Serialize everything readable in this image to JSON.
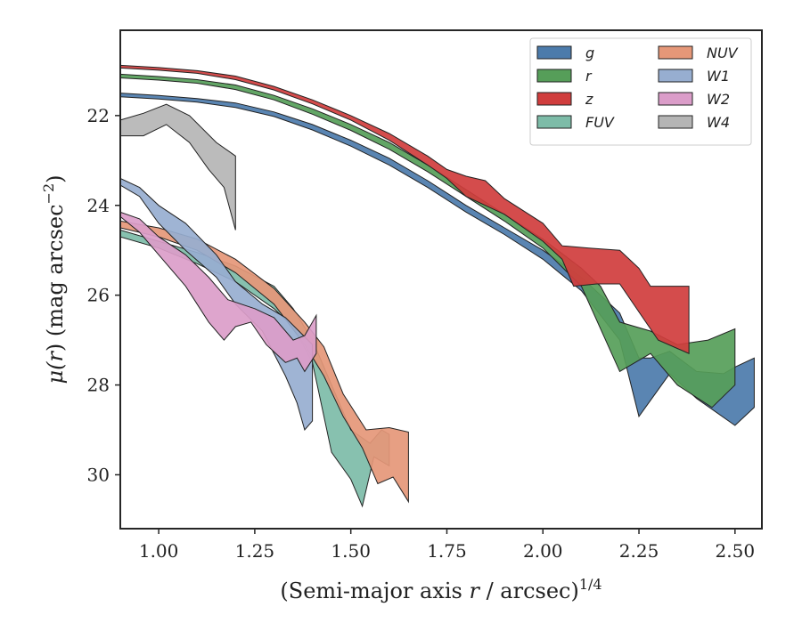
{
  "chart_data": {
    "type": "area",
    "xlabel": "(Semi-major axis r / arcsec)",
    "xlabel_pre": "(Semi-major axis ",
    "xlabel_var": "r",
    "xlabel_post": " / arcsec)",
    "xlabel_exp": "1/4",
    "ylabel_pre": "μ(",
    "ylabel_var": "r",
    "ylabel_mid": ") (mag arcsec",
    "ylabel_exp": "−2",
    "ylabel_post": ")",
    "xlim": [
      0.9,
      2.57
    ],
    "ylim": [
      31.2,
      20.1
    ],
    "y_inverted": true,
    "xticks": [
      1.0,
      1.25,
      1.5,
      1.75,
      2.0,
      2.25,
      2.5
    ],
    "xtick_labels": [
      "1.00",
      "1.25",
      "1.50",
      "1.75",
      "2.00",
      "2.25",
      "2.50"
    ],
    "yticks": [
      22,
      24,
      26,
      28,
      30
    ],
    "ytick_labels": [
      "22",
      "24",
      "26",
      "28",
      "30"
    ],
    "grid": false,
    "legend_position": "top-right",
    "legend_columns": 2,
    "series": [
      {
        "name": "g",
        "color": "#4c7bab",
        "upper": [
          [
            0.9,
            21.5
          ],
          [
            1.0,
            21.55
          ],
          [
            1.1,
            21.62
          ],
          [
            1.2,
            21.72
          ],
          [
            1.3,
            21.92
          ],
          [
            1.4,
            22.2
          ],
          [
            1.5,
            22.55
          ],
          [
            1.6,
            22.95
          ],
          [
            1.7,
            23.45
          ],
          [
            1.8,
            24.0
          ],
          [
            1.9,
            24.5
          ],
          [
            2.0,
            25.0
          ],
          [
            2.1,
            25.6
          ],
          [
            2.2,
            26.4
          ],
          [
            2.25,
            27.4
          ],
          [
            2.28,
            27.4
          ],
          [
            2.33,
            27.25
          ],
          [
            2.4,
            27.7
          ],
          [
            2.47,
            27.75
          ],
          [
            2.5,
            27.6
          ],
          [
            2.55,
            27.4
          ]
        ],
        "lower": [
          [
            0.9,
            21.58
          ],
          [
            1.0,
            21.63
          ],
          [
            1.1,
            21.7
          ],
          [
            1.2,
            21.82
          ],
          [
            1.3,
            22.02
          ],
          [
            1.4,
            22.32
          ],
          [
            1.5,
            22.68
          ],
          [
            1.6,
            23.1
          ],
          [
            1.7,
            23.6
          ],
          [
            1.8,
            24.15
          ],
          [
            1.9,
            24.65
          ],
          [
            2.0,
            25.2
          ],
          [
            2.1,
            25.9
          ],
          [
            2.2,
            27.0
          ],
          [
            2.25,
            28.7
          ],
          [
            2.33,
            27.75
          ],
          [
            2.4,
            28.3
          ],
          [
            2.5,
            28.9
          ],
          [
            2.55,
            28.5
          ]
        ]
      },
      {
        "name": "r",
        "color": "#569e59",
        "upper": [
          [
            0.9,
            21.08
          ],
          [
            1.0,
            21.13
          ],
          [
            1.1,
            21.2
          ],
          [
            1.2,
            21.32
          ],
          [
            1.3,
            21.55
          ],
          [
            1.4,
            21.85
          ],
          [
            1.5,
            22.2
          ],
          [
            1.6,
            22.6
          ],
          [
            1.7,
            23.1
          ],
          [
            1.8,
            23.65
          ],
          [
            1.9,
            24.2
          ],
          [
            2.0,
            24.75
          ],
          [
            2.1,
            25.4
          ],
          [
            2.15,
            25.8
          ],
          [
            2.2,
            26.6
          ],
          [
            2.28,
            26.8
          ],
          [
            2.35,
            27.1
          ],
          [
            2.43,
            27.0
          ],
          [
            2.5,
            26.75
          ]
        ],
        "lower": [
          [
            0.9,
            21.16
          ],
          [
            1.0,
            21.21
          ],
          [
            1.1,
            21.28
          ],
          [
            1.2,
            21.42
          ],
          [
            1.3,
            21.65
          ],
          [
            1.4,
            21.97
          ],
          [
            1.5,
            22.33
          ],
          [
            1.6,
            22.75
          ],
          [
            1.7,
            23.25
          ],
          [
            1.8,
            23.8
          ],
          [
            1.9,
            24.35
          ],
          [
            2.0,
            24.95
          ],
          [
            2.1,
            25.8
          ],
          [
            2.2,
            27.7
          ],
          [
            2.28,
            27.3
          ],
          [
            2.35,
            28.0
          ],
          [
            2.44,
            28.5
          ],
          [
            2.5,
            28.0
          ]
        ]
      },
      {
        "name": "z",
        "color": "#d03d3d",
        "upper": [
          [
            0.9,
            20.88
          ],
          [
            1.0,
            20.93
          ],
          [
            1.1,
            21.0
          ],
          [
            1.2,
            21.12
          ],
          [
            1.3,
            21.35
          ],
          [
            1.4,
            21.65
          ],
          [
            1.5,
            22.0
          ],
          [
            1.6,
            22.4
          ],
          [
            1.7,
            22.9
          ],
          [
            1.75,
            23.2
          ],
          [
            1.8,
            23.35
          ],
          [
            1.85,
            23.45
          ],
          [
            1.9,
            23.85
          ],
          [
            2.0,
            24.4
          ],
          [
            2.05,
            24.9
          ],
          [
            2.12,
            24.95
          ],
          [
            2.2,
            25.0
          ],
          [
            2.25,
            25.4
          ],
          [
            2.28,
            25.8
          ],
          [
            2.38,
            25.8
          ]
        ],
        "lower": [
          [
            0.9,
            20.94
          ],
          [
            1.0,
            20.99
          ],
          [
            1.1,
            21.06
          ],
          [
            1.2,
            21.2
          ],
          [
            1.3,
            21.43
          ],
          [
            1.4,
            21.74
          ],
          [
            1.5,
            22.1
          ],
          [
            1.6,
            22.55
          ],
          [
            1.7,
            23.1
          ],
          [
            1.75,
            23.4
          ],
          [
            1.8,
            23.8
          ],
          [
            1.9,
            24.2
          ],
          [
            2.0,
            24.8
          ],
          [
            2.05,
            25.2
          ],
          [
            2.08,
            25.8
          ],
          [
            2.14,
            25.75
          ],
          [
            2.2,
            25.75
          ],
          [
            2.3,
            27.0
          ],
          [
            2.38,
            27.3
          ]
        ]
      },
      {
        "name": "FUV",
        "color": "#7dbca8",
        "upper": [
          [
            0.9,
            24.55
          ],
          [
            1.0,
            24.8
          ],
          [
            1.1,
            25.05
          ],
          [
            1.2,
            25.35
          ],
          [
            1.3,
            25.8
          ],
          [
            1.35,
            26.3
          ],
          [
            1.4,
            27.0
          ],
          [
            1.45,
            28.0
          ],
          [
            1.5,
            29.0
          ],
          [
            1.55,
            29.3
          ],
          [
            1.58,
            29.0
          ],
          [
            1.6,
            29.1
          ]
        ],
        "lower": [
          [
            0.9,
            24.7
          ],
          [
            1.0,
            24.95
          ],
          [
            1.1,
            25.3
          ],
          [
            1.2,
            25.7
          ],
          [
            1.3,
            26.3
          ],
          [
            1.35,
            26.7
          ],
          [
            1.4,
            27.5
          ],
          [
            1.45,
            29.5
          ],
          [
            1.5,
            30.1
          ],
          [
            1.53,
            30.7
          ],
          [
            1.56,
            29.6
          ],
          [
            1.6,
            29.8
          ]
        ]
      },
      {
        "name": "NUV",
        "color": "#e59778",
        "upper": [
          [
            0.9,
            24.35
          ],
          [
            1.0,
            24.5
          ],
          [
            1.1,
            24.75
          ],
          [
            1.2,
            25.2
          ],
          [
            1.3,
            25.85
          ],
          [
            1.38,
            26.6
          ],
          [
            1.43,
            27.15
          ],
          [
            1.48,
            28.2
          ],
          [
            1.54,
            29.0
          ],
          [
            1.6,
            28.95
          ],
          [
            1.65,
            29.05
          ]
        ],
        "lower": [
          [
            0.9,
            24.5
          ],
          [
            1.0,
            24.7
          ],
          [
            1.1,
            25.0
          ],
          [
            1.2,
            25.5
          ],
          [
            1.3,
            26.2
          ],
          [
            1.38,
            27.1
          ],
          [
            1.43,
            27.8
          ],
          [
            1.48,
            28.7
          ],
          [
            1.53,
            29.4
          ],
          [
            1.57,
            30.2
          ],
          [
            1.61,
            30.05
          ],
          [
            1.65,
            30.6
          ]
        ]
      },
      {
        "name": "W1",
        "color": "#97aed0",
        "upper": [
          [
            0.9,
            23.4
          ],
          [
            0.95,
            23.6
          ],
          [
            1.0,
            24.0
          ],
          [
            1.07,
            24.4
          ],
          [
            1.15,
            25.1
          ],
          [
            1.2,
            25.7
          ],
          [
            1.27,
            26.2
          ],
          [
            1.33,
            26.5
          ],
          [
            1.4,
            27.1
          ]
        ],
        "lower": [
          [
            0.9,
            23.55
          ],
          [
            0.95,
            23.8
          ],
          [
            1.0,
            24.4
          ],
          [
            1.07,
            25.0
          ],
          [
            1.15,
            25.6
          ],
          [
            1.2,
            26.2
          ],
          [
            1.27,
            26.8
          ],
          [
            1.33,
            27.8
          ],
          [
            1.36,
            28.4
          ],
          [
            1.38,
            29.0
          ],
          [
            1.4,
            28.8
          ]
        ]
      },
      {
        "name": "W2",
        "color": "#db9dc9",
        "upper": [
          [
            0.9,
            24.15
          ],
          [
            0.95,
            24.3
          ],
          [
            1.0,
            24.7
          ],
          [
            1.07,
            25.1
          ],
          [
            1.13,
            25.6
          ],
          [
            1.18,
            26.1
          ],
          [
            1.25,
            26.3
          ],
          [
            1.3,
            26.5
          ],
          [
            1.35,
            27.0
          ],
          [
            1.38,
            26.9
          ],
          [
            1.41,
            26.45
          ]
        ],
        "lower": [
          [
            0.9,
            24.25
          ],
          [
            0.95,
            24.6
          ],
          [
            1.0,
            25.1
          ],
          [
            1.07,
            25.8
          ],
          [
            1.13,
            26.6
          ],
          [
            1.17,
            27.0
          ],
          [
            1.2,
            26.7
          ],
          [
            1.24,
            26.6
          ],
          [
            1.28,
            27.1
          ],
          [
            1.33,
            27.5
          ],
          [
            1.36,
            27.4
          ],
          [
            1.38,
            27.7
          ],
          [
            1.41,
            27.3
          ]
        ]
      },
      {
        "name": "W4",
        "color": "#b5b5b5",
        "upper": [
          [
            0.9,
            22.1
          ],
          [
            0.96,
            21.95
          ],
          [
            1.02,
            21.75
          ],
          [
            1.08,
            22.0
          ],
          [
            1.15,
            22.6
          ],
          [
            1.2,
            22.9
          ]
        ],
        "lower": [
          [
            0.9,
            22.45
          ],
          [
            0.96,
            22.45
          ],
          [
            1.02,
            22.2
          ],
          [
            1.08,
            22.6
          ],
          [
            1.13,
            23.2
          ],
          [
            1.17,
            23.6
          ],
          [
            1.2,
            24.55
          ]
        ]
      }
    ]
  }
}
